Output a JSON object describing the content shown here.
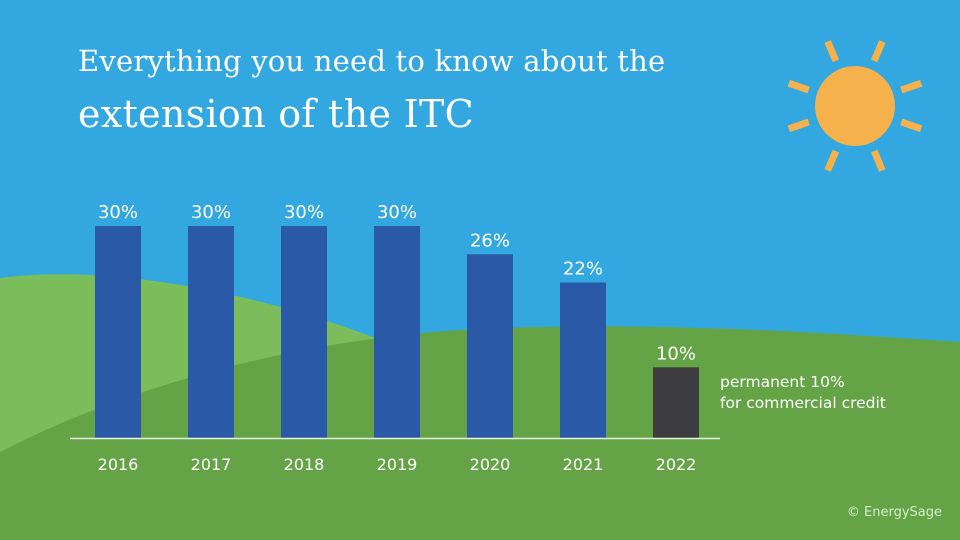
{
  "title": {
    "line1": "Everything you need to know about the",
    "line2": "extension of the ITC"
  },
  "note": {
    "line1": "permanent 10%",
    "line2": "for commercial credit"
  },
  "credit": "© EnergySage",
  "colors": {
    "sky": "#33a7df",
    "hill_light": "#7bbd5a",
    "hill_dark": "#64a446",
    "bar": "#2a5aa7",
    "bar_permanent": "#3d3d3f",
    "sun": "#f5b14b",
    "text": "#ffffff"
  },
  "icons": [
    "sun-icon"
  ],
  "chart_data": {
    "type": "bar",
    "categories": [
      "2016",
      "2017",
      "2018",
      "2019",
      "2020",
      "2021",
      "2022"
    ],
    "values": [
      30,
      30,
      30,
      30,
      26,
      22,
      10
    ],
    "value_labels": [
      "30%",
      "30%",
      "30%",
      "30%",
      "26%",
      "22%",
      "10%"
    ],
    "highlight_category": "2022",
    "unit": "%",
    "ylim": [
      0,
      30
    ],
    "grid": false,
    "legend": "none"
  }
}
